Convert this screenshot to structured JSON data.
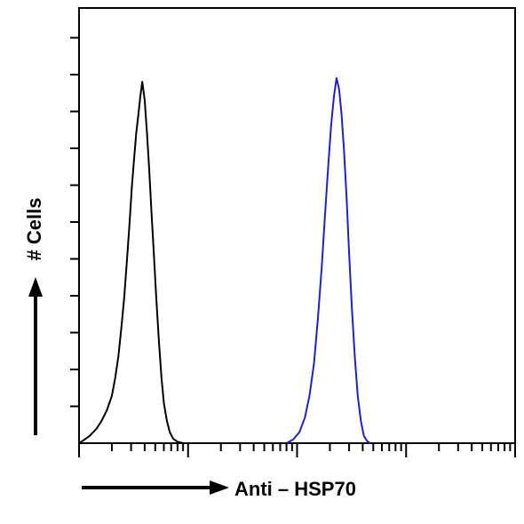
{
  "chart_data": {
    "type": "histogram",
    "title": "",
    "xlabel": "Anti – HSP70",
    "ylabel": "# Cells",
    "x_scale": "log",
    "xlim": [
      1,
      10000
    ],
    "ylim": [
      0,
      1
    ],
    "grid": false,
    "legend": "none",
    "series": [
      {
        "color": "#000000",
        "points": [
          [
            1.0,
            0.0
          ],
          [
            1.1,
            0.008
          ],
          [
            1.25,
            0.02
          ],
          [
            1.45,
            0.04
          ],
          [
            1.6,
            0.06
          ],
          [
            1.8,
            0.09
          ],
          [
            2.0,
            0.13
          ],
          [
            2.15,
            0.18
          ],
          [
            2.3,
            0.24
          ],
          [
            2.45,
            0.32
          ],
          [
            2.6,
            0.4
          ],
          [
            2.75,
            0.5
          ],
          [
            2.9,
            0.6
          ],
          [
            3.05,
            0.7
          ],
          [
            3.2,
            0.78
          ],
          [
            3.35,
            0.85
          ],
          [
            3.5,
            0.9
          ],
          [
            3.65,
            0.95
          ],
          [
            3.8,
            0.99
          ],
          [
            4.0,
            0.94
          ],
          [
            4.2,
            0.85
          ],
          [
            4.4,
            0.75
          ],
          [
            4.6,
            0.64
          ],
          [
            4.85,
            0.52
          ],
          [
            5.1,
            0.4
          ],
          [
            5.4,
            0.28
          ],
          [
            5.7,
            0.18
          ],
          [
            6.0,
            0.11
          ],
          [
            6.4,
            0.06
          ],
          [
            6.8,
            0.03
          ],
          [
            7.3,
            0.012
          ],
          [
            8.0,
            0.004
          ],
          [
            9.0,
            0.0
          ]
        ]
      },
      {
        "color": "#1f1fd2",
        "points": [
          [
            80.0,
            0.0
          ],
          [
            92.0,
            0.01
          ],
          [
            105.0,
            0.03
          ],
          [
            118.0,
            0.07
          ],
          [
            130.0,
            0.13
          ],
          [
            143.0,
            0.22
          ],
          [
            155.0,
            0.34
          ],
          [
            168.0,
            0.48
          ],
          [
            180.0,
            0.62
          ],
          [
            193.0,
            0.76
          ],
          [
            205.0,
            0.87
          ],
          [
            218.0,
            0.95
          ],
          [
            230.0,
            1.0
          ],
          [
            243.0,
            0.97
          ],
          [
            256.0,
            0.9
          ],
          [
            270.0,
            0.8
          ],
          [
            285.0,
            0.67
          ],
          [
            300.0,
            0.52
          ],
          [
            318.0,
            0.37
          ],
          [
            338.0,
            0.24
          ],
          [
            360.0,
            0.13
          ],
          [
            385.0,
            0.06
          ],
          [
            410.0,
            0.02
          ],
          [
            440.0,
            0.005
          ],
          [
            470.0,
            0.0
          ]
        ]
      }
    ]
  }
}
